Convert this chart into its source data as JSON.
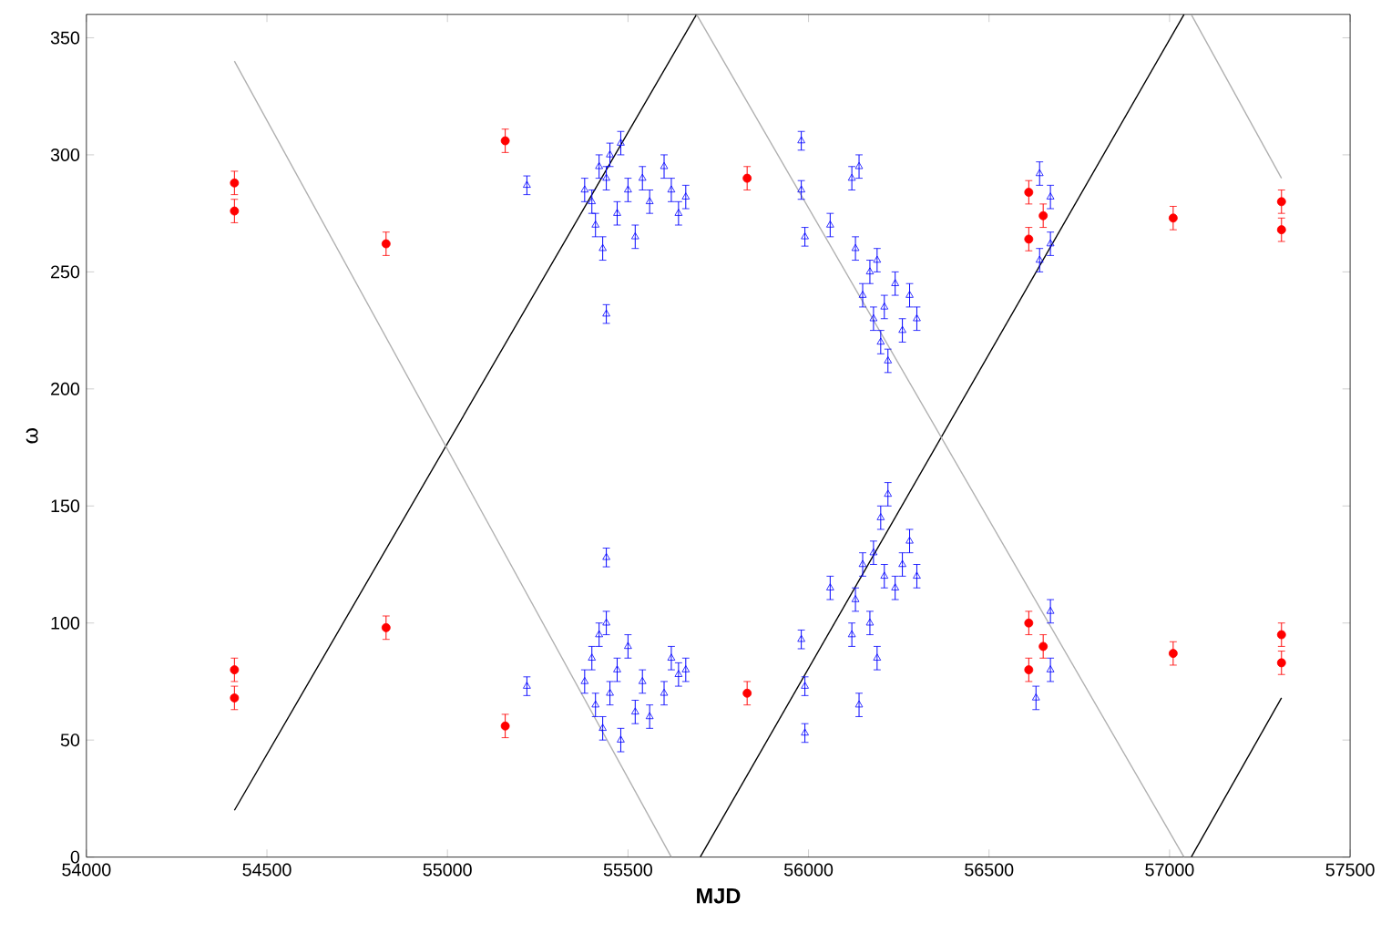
{
  "chart_data": {
    "type": "scatter",
    "xlabel": "MJD",
    "ylabel": "ω",
    "xlim": [
      54000,
      57500
    ],
    "ylim": [
      0,
      360
    ],
    "xticks": [
      54000,
      54500,
      55000,
      55500,
      56000,
      56500,
      57000,
      57500
    ],
    "yticks": [
      0,
      50,
      100,
      150,
      200,
      250,
      300,
      350
    ],
    "series": [
      {
        "type": "line",
        "color": "#000000",
        "marker": "none",
        "x": [
          54410,
          55690
        ],
        "values": [
          20,
          360
        ]
      },
      {
        "type": "line",
        "color": "#000000",
        "marker": "none",
        "x": [
          55700,
          57040
        ],
        "values": [
          0,
          360
        ]
      },
      {
        "type": "line",
        "color": "#000000",
        "marker": "none",
        "x": [
          57060,
          57310
        ],
        "values": [
          0,
          68
        ]
      },
      {
        "type": "line",
        "color": "#b0b0b0",
        "marker": "none",
        "x": [
          54410,
          55620
        ],
        "values": [
          340,
          0
        ]
      },
      {
        "type": "line",
        "color": "#b0b0b0",
        "marker": "none",
        "x": [
          55690,
          57040
        ],
        "values": [
          360,
          0
        ]
      },
      {
        "type": "line",
        "color": "#b0b0b0",
        "marker": "none",
        "x": [
          57060,
          57310
        ],
        "values": [
          360,
          290
        ]
      },
      {
        "color": "#0000ff",
        "marker": "triangle",
        "x": [
          55220,
          55220,
          55380,
          55400,
          55410,
          55420,
          55430,
          55440,
          55440,
          55450,
          55470,
          55480,
          55500,
          55520,
          55540,
          55560,
          55600,
          55620,
          55640,
          55660,
          55380,
          55400,
          55410,
          55420,
          55430,
          55440,
          55440,
          55450,
          55470,
          55480,
          55500,
          55520,
          55540,
          55560,
          55600,
          55620,
          55640,
          55660,
          55980,
          55980,
          55990,
          55980,
          55990,
          55990,
          56060,
          56060,
          56120,
          56140,
          56130,
          56150,
          56170,
          56180,
          56190,
          56200,
          56210,
          56220,
          56240,
          56260,
          56280,
          56300,
          56120,
          56140,
          56130,
          56150,
          56170,
          56180,
          56190,
          56200,
          56210,
          56220,
          56240,
          56260,
          56280,
          56300,
          56640,
          56640,
          56670,
          56670,
          56670,
          56670,
          56630
        ],
        "values": [
          287,
          73,
          285,
          280,
          270,
          295,
          260,
          290,
          232,
          300,
          275,
          305,
          285,
          265,
          290,
          280,
          295,
          285,
          275,
          282,
          75,
          85,
          65,
          95,
          55,
          100,
          128,
          70,
          80,
          50,
          90,
          62,
          75,
          60,
          70,
          85,
          78,
          80,
          306,
          285,
          265,
          93,
          73,
          53,
          270,
          115,
          290,
          295,
          260,
          240,
          250,
          230,
          255,
          220,
          235,
          212,
          245,
          225,
          240,
          230,
          95,
          65,
          110,
          125,
          100,
          130,
          85,
          145,
          120,
          155,
          115,
          125,
          135,
          120,
          292,
          255,
          282,
          262,
          105,
          80,
          68
        ],
        "errors": [
          4,
          4,
          5,
          5,
          5,
          5,
          5,
          5,
          4,
          5,
          5,
          5,
          5,
          5,
          5,
          5,
          5,
          5,
          5,
          5,
          5,
          5,
          5,
          5,
          5,
          5,
          4,
          5,
          5,
          5,
          5,
          5,
          5,
          5,
          5,
          5,
          5,
          5,
          4,
          4,
          4,
          4,
          4,
          4,
          5,
          5,
          5,
          5,
          5,
          5,
          5,
          5,
          5,
          5,
          5,
          5,
          5,
          5,
          5,
          5,
          5,
          5,
          5,
          5,
          5,
          5,
          5,
          5,
          5,
          5,
          5,
          5,
          5,
          5,
          5,
          5,
          5,
          5,
          5,
          5,
          5
        ]
      },
      {
        "color": "#ff0000",
        "marker": "circle",
        "x": [
          54410,
          54410,
          54410,
          54410,
          54830,
          54830,
          55160,
          55160,
          55830,
          55830,
          56610,
          56610,
          56610,
          56610,
          56650,
          56650,
          57010,
          57010,
          57310,
          57310,
          57310,
          57310
        ],
        "values": [
          288,
          276,
          80,
          68,
          262,
          98,
          306,
          56,
          290,
          70,
          284,
          264,
          100,
          80,
          274,
          90,
          273,
          87,
          280,
          268,
          95,
          83
        ],
        "errors": [
          5,
          5,
          5,
          5,
          5,
          5,
          5,
          5,
          5,
          5,
          5,
          5,
          5,
          5,
          5,
          5,
          5,
          5,
          5,
          5,
          5,
          5
        ]
      }
    ]
  }
}
